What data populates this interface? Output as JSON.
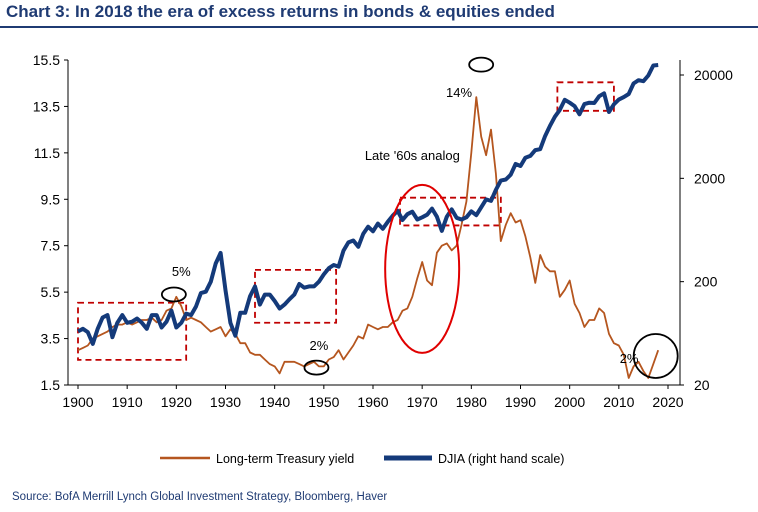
{
  "title": "Chart 3: In 2018  the era of excess returns in bonds & equities ended",
  "source": "Source:  BofA Merrill Lynch Global Investment Strategy, Bloomberg, Haver",
  "colors": {
    "title": "#1f3b73",
    "treasury": "#b5561f",
    "djia": "#143a7a",
    "box": "#c00000",
    "circle_red": "#e00000",
    "circle_black": "#000000"
  },
  "chart_data": {
    "type": "line",
    "title": "Chart 3: In 2018  the era of excess returns in bonds & equities ended",
    "xlim": [
      1898,
      2022
    ],
    "x_ticks": [
      1900,
      1910,
      1920,
      1930,
      1940,
      1950,
      1960,
      1970,
      1980,
      1990,
      2000,
      2010,
      2020
    ],
    "y_left": {
      "lim": [
        1.5,
        15.5
      ],
      "ticks": [
        "1.5",
        "3.5",
        "5.5",
        "7.5",
        "9.5",
        "11.5",
        "13.5",
        "15.5"
      ]
    },
    "y_right": {
      "scale": "log",
      "lim": [
        20,
        30000
      ],
      "ticks": [
        "20",
        "200",
        "2000",
        "20000"
      ]
    },
    "legend": {
      "placement": "bottom"
    },
    "series": [
      {
        "name": "Long-term Treasury yield",
        "axis": "left",
        "x": [
          1900,
          1901,
          1902,
          1903,
          1904,
          1905,
          1906,
          1907,
          1908,
          1909,
          1910,
          1911,
          1912,
          1913,
          1914,
          1915,
          1916,
          1917,
          1918,
          1919,
          1920,
          1921,
          1922,
          1923,
          1924,
          1925,
          1926,
          1927,
          1928,
          1929,
          1930,
          1931,
          1932,
          1933,
          1934,
          1935,
          1936,
          1937,
          1938,
          1939,
          1940,
          1941,
          1942,
          1943,
          1944,
          1945,
          1946,
          1947,
          1948,
          1949,
          1950,
          1951,
          1952,
          1953,
          1954,
          1955,
          1956,
          1957,
          1958,
          1959,
          1960,
          1961,
          1962,
          1963,
          1964,
          1965,
          1966,
          1967,
          1968,
          1969,
          1970,
          1971,
          1972,
          1973,
          1974,
          1975,
          1976,
          1977,
          1978,
          1979,
          1980,
          1981,
          1982,
          1983,
          1984,
          1985,
          1986,
          1987,
          1988,
          1989,
          1990,
          1991,
          1992,
          1993,
          1994,
          1995,
          1996,
          1997,
          1998,
          1999,
          2000,
          2001,
          2002,
          2003,
          2004,
          2005,
          2006,
          2007,
          2008,
          2009,
          2010,
          2011,
          2012,
          2013,
          2014,
          2015,
          2016,
          2017,
          2018
        ],
        "values": [
          3.0,
          3.1,
          3.2,
          3.5,
          3.6,
          3.7,
          3.8,
          4.0,
          4.1,
          4.1,
          4.2,
          4.1,
          4.2,
          4.3,
          4.3,
          4.4,
          4.2,
          4.3,
          4.7,
          4.8,
          5.3,
          4.9,
          4.3,
          4.4,
          4.3,
          4.2,
          4.0,
          3.8,
          3.9,
          4.0,
          3.6,
          3.9,
          3.7,
          3.3,
          3.3,
          2.9,
          2.8,
          2.8,
          2.6,
          2.4,
          2.3,
          2.0,
          2.5,
          2.5,
          2.5,
          2.4,
          2.3,
          2.4,
          2.5,
          2.3,
          2.3,
          2.6,
          2.7,
          3.0,
          2.6,
          2.9,
          3.2,
          3.6,
          3.5,
          4.1,
          4.0,
          3.9,
          4.0,
          4.0,
          4.2,
          4.3,
          4.7,
          4.8,
          5.3,
          6.1,
          6.8,
          6.0,
          5.8,
          7.2,
          7.5,
          7.6,
          7.3,
          7.5,
          8.4,
          9.4,
          11.5,
          13.9,
          12.2,
          11.4,
          12.5,
          10.6,
          7.7,
          8.4,
          8.9,
          8.5,
          8.6,
          7.9,
          7.0,
          5.9,
          7.1,
          6.6,
          6.4,
          6.4,
          5.3,
          5.6,
          6.0,
          5.0,
          4.6,
          4.0,
          4.3,
          4.3,
          4.8,
          4.6,
          3.7,
          3.3,
          3.2,
          2.8,
          1.8,
          2.3,
          2.5,
          2.1,
          1.8,
          2.4,
          3.0
        ]
      },
      {
        "name": "DJIA (right hand scale)",
        "axis": "right",
        "x": [
          1900,
          1901,
          1902,
          1903,
          1904,
          1905,
          1906,
          1907,
          1908,
          1909,
          1910,
          1911,
          1912,
          1913,
          1914,
          1915,
          1916,
          1917,
          1918,
          1919,
          1920,
          1921,
          1922,
          1923,
          1924,
          1925,
          1926,
          1927,
          1928,
          1929,
          1930,
          1931,
          1932,
          1933,
          1934,
          1935,
          1936,
          1937,
          1938,
          1939,
          1940,
          1941,
          1942,
          1943,
          1944,
          1945,
          1946,
          1947,
          1948,
          1949,
          1950,
          1951,
          1952,
          1953,
          1954,
          1955,
          1956,
          1957,
          1958,
          1959,
          1960,
          1961,
          1962,
          1963,
          1964,
          1965,
          1966,
          1967,
          1968,
          1969,
          1970,
          1971,
          1972,
          1973,
          1974,
          1975,
          1976,
          1977,
          1978,
          1979,
          1980,
          1981,
          1982,
          1983,
          1984,
          1985,
          1986,
          1987,
          1988,
          1989,
          1990,
          1991,
          1992,
          1993,
          1994,
          1995,
          1996,
          1997,
          1998,
          1999,
          2000,
          2001,
          2002,
          2003,
          2004,
          2005,
          2006,
          2007,
          2008,
          2009,
          2010,
          2011,
          2012,
          2013,
          2014,
          2015,
          2016,
          2017,
          2018
        ],
        "values": [
          66,
          70,
          65,
          50,
          70,
          90,
          95,
          58,
          80,
          95,
          80,
          82,
          88,
          80,
          70,
          95,
          95,
          72,
          82,
          105,
          72,
          80,
          98,
          95,
          115,
          155,
          160,
          200,
          300,
          380,
          165,
          80,
          60,
          100,
          100,
          145,
          180,
          120,
          150,
          150,
          130,
          110,
          120,
          135,
          150,
          190,
          175,
          180,
          180,
          200,
          235,
          270,
          290,
          280,
          400,
          480,
          500,
          435,
          580,
          680,
          615,
          730,
          650,
          760,
          870,
          970,
          790,
          900,
          950,
          800,
          840,
          890,
          1020,
          850,
          620,
          850,
          1000,
          830,
          800,
          840,
          960,
          880,
          1050,
          1250,
          1210,
          1550,
          1900,
          1950,
          2170,
          2750,
          2630,
          3170,
          3300,
          3750,
          3830,
          5120,
          6450,
          7900,
          9180,
          11500,
          10800,
          10000,
          8340,
          10450,
          10780,
          10720,
          12460,
          13260,
          8770,
          10400,
          11570,
          12210,
          13100,
          16580,
          17800,
          17400,
          19760,
          24700,
          25000
        ]
      }
    ],
    "annotations": [
      {
        "type": "text",
        "text": "Late '60s analog"
      },
      {
        "type": "text",
        "text": "14%"
      },
      {
        "type": "text",
        "text": "5%"
      },
      {
        "type": "text",
        "text": "2%"
      },
      {
        "type": "text",
        "text": "2%"
      }
    ]
  }
}
